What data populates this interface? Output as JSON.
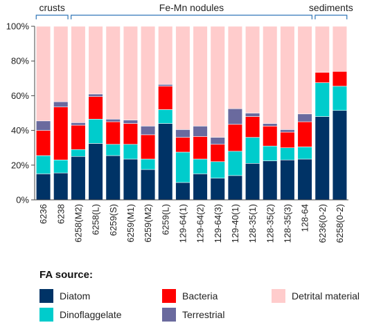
{
  "chart_data": {
    "type": "bar",
    "stacked": true,
    "title": "",
    "xlabel": "",
    "ylabel": "",
    "ylim": [
      0,
      100
    ],
    "yticks": [
      "0%",
      "20%",
      "40%",
      "60%",
      "80%",
      "100%"
    ],
    "grid": false,
    "categories": [
      "6236",
      "6238",
      "6258(M2)",
      "6258(L)",
      "6259(S)",
      "6259(M1)",
      "6259(M2)",
      "6259(L)",
      "129-64(1)",
      "129-64(2)",
      "129-64(3)",
      "129-40(1)",
      "128-35(1)",
      "128-35(2)",
      "128-35(3)",
      "128-64",
      "6236(0-2)",
      "6258(0-2)"
    ],
    "groups": [
      {
        "label": "crusts",
        "from": 0,
        "to": 1
      },
      {
        "label": "Fe-Mn nodules",
        "from": 2,
        "to": 15
      },
      {
        "label": "sediments",
        "from": 16,
        "to": 17
      }
    ],
    "legend_title": "FA source:",
    "series": [
      {
        "name": "Diatom",
        "color": "#003366",
        "values": [
          15,
          15.5,
          25,
          32.5,
          25.5,
          23.5,
          17.5,
          44,
          10,
          15,
          12.5,
          14,
          21,
          22.5,
          23,
          23.5,
          48,
          51.5
        ]
      },
      {
        "name": "Dinoflaggelate",
        "color": "#00CCCC",
        "values": [
          10.5,
          7.5,
          4,
          14,
          6.5,
          8.5,
          6,
          8,
          17.5,
          8.5,
          9.5,
          14,
          15,
          8.5,
          7,
          7,
          19.5,
          14
        ]
      },
      {
        "name": "Bacteria",
        "color": "#FF0000",
        "values": [
          14.5,
          30.5,
          14,
          13,
          13,
          12,
          14,
          13.5,
          8.5,
          13,
          10,
          15.5,
          12,
          11.5,
          9,
          14.5,
          6,
          8.5
        ]
      },
      {
        "name": "Terrestrial",
        "color": "#6A6A9E",
        "values": [
          5.5,
          3,
          1.5,
          1.5,
          1.5,
          2,
          5,
          1,
          4.5,
          6,
          4,
          9,
          2,
          1.5,
          1.5,
          4.5,
          0,
          0
        ]
      },
      {
        "name": "Detrital material",
        "color": "#FFCCCC",
        "values": [
          54.5,
          43.5,
          55.5,
          39,
          53.5,
          54,
          57.5,
          33.5,
          59.5,
          57.5,
          64,
          47.5,
          50,
          56,
          59.5,
          50.5,
          26.5,
          26
        ]
      }
    ],
    "legend_layout": [
      "Diatom",
      "Bacteria",
      "Detrital material",
      "Dinoflaggelate",
      "Terrestrial"
    ]
  }
}
